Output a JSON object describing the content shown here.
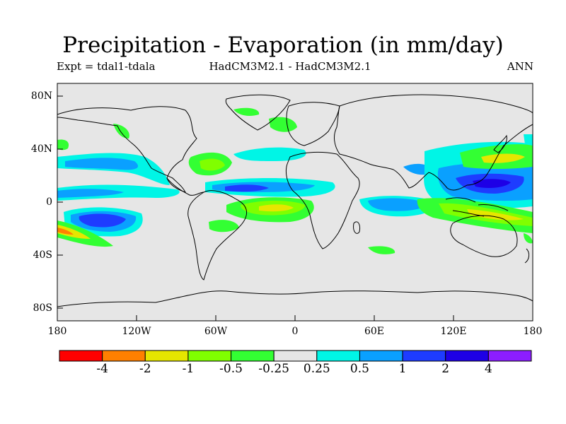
{
  "title": "Precipitation - Evaporation (in mm/day)",
  "subtitle": {
    "left": "Expt = tdal1-tdala",
    "center": "HadCM3M2.1 - HadCM3M2.1",
    "right": "ANN"
  },
  "latitude_labels": [
    "80N",
    "40N",
    "0",
    "40S",
    "80S"
  ],
  "longitude_labels": [
    "180",
    "120W",
    "60W",
    "0",
    "60E",
    "120E",
    "180"
  ],
  "colorbar": {
    "colors": [
      "#ff0000",
      "#ff8000",
      "#e6e600",
      "#80ff00",
      "#33ff33",
      "#e6e6e6",
      "#00f5e6",
      "#0aa0ff",
      "#1e3cff",
      "#1e00e6",
      "#8c1eff"
    ],
    "labels": [
      "-4",
      "-2",
      "-1",
      "-0.5",
      "-0.25",
      "0.25",
      "0.5",
      "1",
      "2",
      "4"
    ]
  },
  "map_colors": {
    "background": "#e6e6e6",
    "coast": "#000000"
  }
}
